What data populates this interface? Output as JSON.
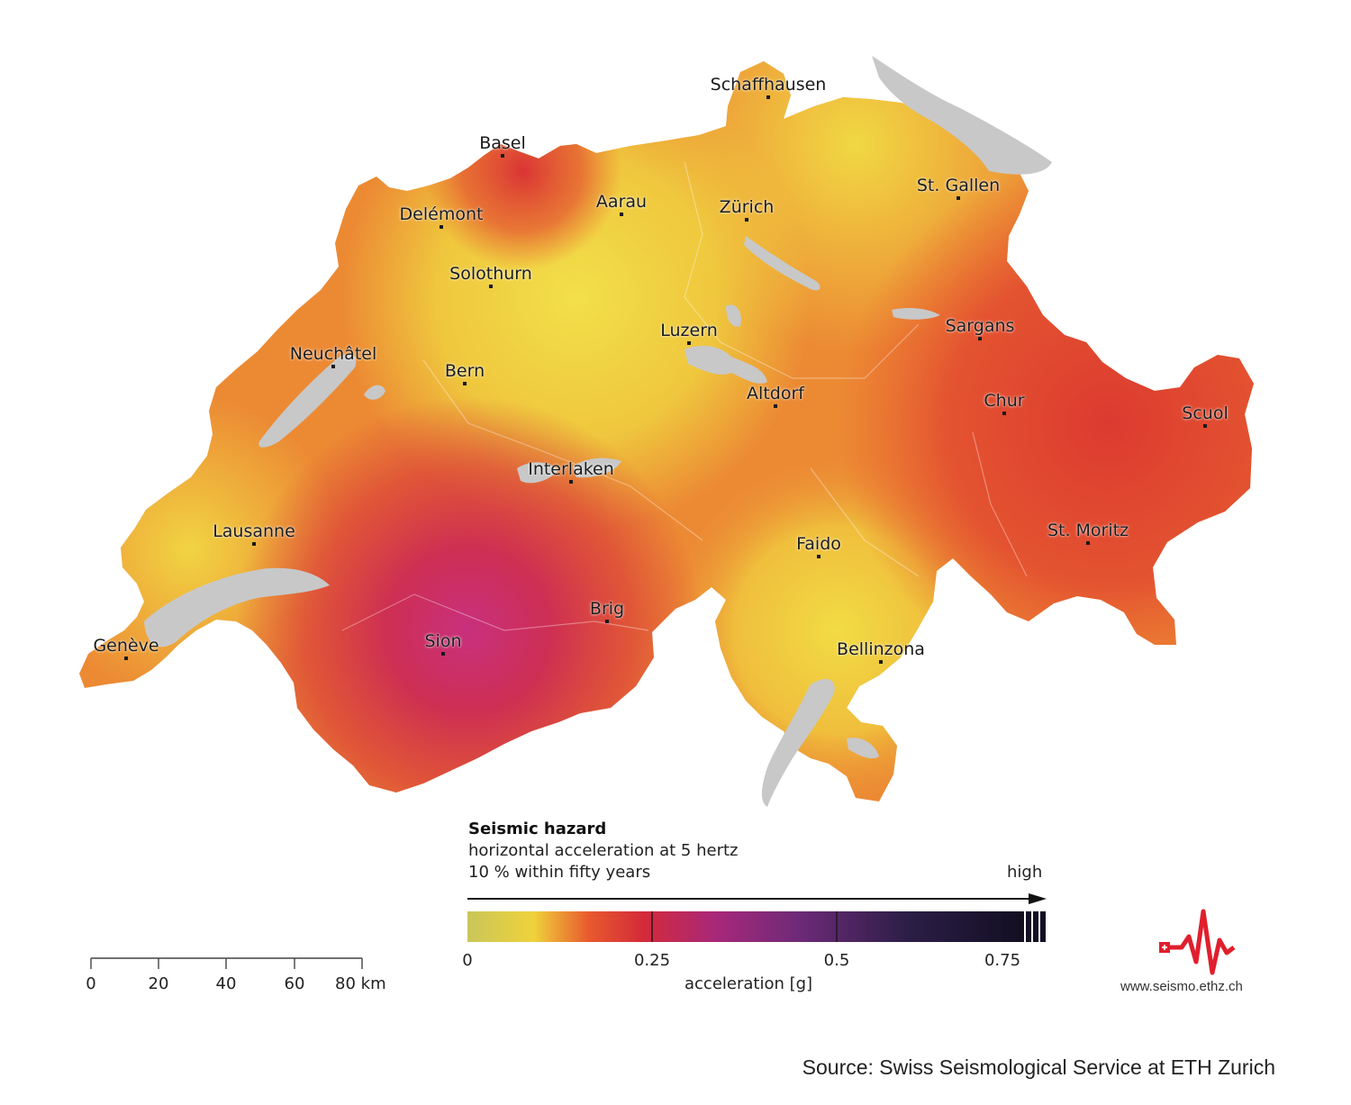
{
  "legend": {
    "title": "Seismic hazard",
    "subtitle_1": "horizontal acceleration at 5 hertz",
    "subtitle_2": "10 % within fifty years",
    "high_label": "high",
    "axis_label": "acceleration [g]",
    "ticks": [
      "0",
      "0.25",
      "0.5",
      "0.75"
    ],
    "color_stops": [
      "#c9c65a",
      "#efd23b",
      "#e85a2e",
      "#d42a3a",
      "#a8287a",
      "#6e2a78",
      "#2b1e46",
      "#140f24"
    ]
  },
  "scale_bar": {
    "ticks": [
      "0",
      "20",
      "40",
      "60"
    ],
    "last_tick": "80",
    "unit": "km"
  },
  "cities": [
    {
      "name": "Schaffhausen",
      "label": "Schaffhausen"
    },
    {
      "name": "Basel",
      "label": "Basel"
    },
    {
      "name": "Aarau",
      "label": "Aarau"
    },
    {
      "name": "Zurich",
      "label": "Zürich"
    },
    {
      "name": "St-Gallen",
      "label": "St. Gallen"
    },
    {
      "name": "Delemont",
      "label": "Delémont"
    },
    {
      "name": "Solothurn",
      "label": "Solothurn"
    },
    {
      "name": "Luzern",
      "label": "Luzern"
    },
    {
      "name": "Sargans",
      "label": "Sargans"
    },
    {
      "name": "Neuchatel",
      "label": "Neuchâtel"
    },
    {
      "name": "Bern",
      "label": "Bern"
    },
    {
      "name": "Altdorf",
      "label": "Altdorf"
    },
    {
      "name": "Chur",
      "label": "Chur"
    },
    {
      "name": "Scuol",
      "label": "Scuol"
    },
    {
      "name": "Interlaken",
      "label": "Interlaken"
    },
    {
      "name": "Lausanne",
      "label": "Lausanne"
    },
    {
      "name": "Faido",
      "label": "Faido"
    },
    {
      "name": "St-Moritz",
      "label": "St. Moritz"
    },
    {
      "name": "Brig",
      "label": "Brig"
    },
    {
      "name": "Geneve",
      "label": "Genève"
    },
    {
      "name": "Sion",
      "label": "Sion"
    },
    {
      "name": "Bellinzona",
      "label": "Bellinzona"
    }
  ],
  "colors": {
    "lake": "#c8c8c8",
    "low": "#efd23b",
    "medium": "#ec7a30",
    "high": "#d8343a",
    "very_high": "#b8286a",
    "logo_red": "#e01f2d"
  },
  "logo": {
    "url_text": "www.seismo.ethz.ch",
    "icon": "seismogram-logo-icon"
  },
  "source": "Source: Swiss Seismological Service at ETH Zurich"
}
